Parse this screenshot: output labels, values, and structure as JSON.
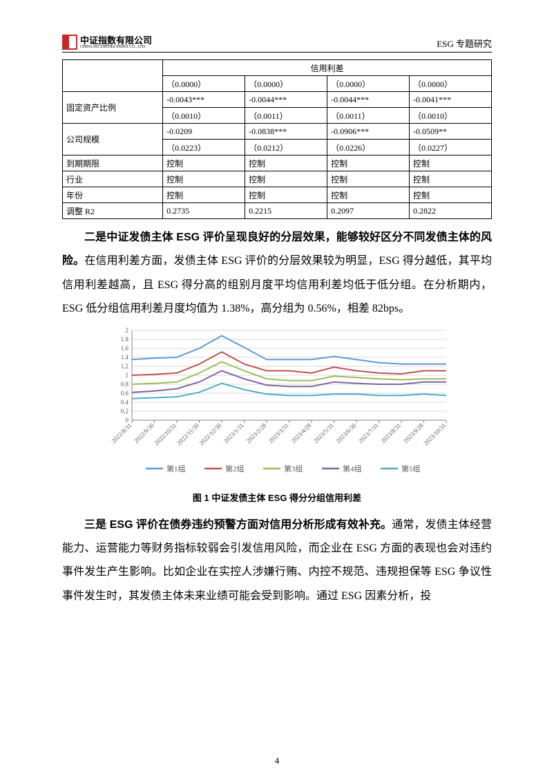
{
  "header": {
    "logo_cn": "中证指数有限公司",
    "logo_en": "CHINA SECURITIES INDEX CO., LTD.",
    "right": "ESG 专题研究"
  },
  "table": {
    "credit_spread_label": "信用利差",
    "row1": [
      "",
      "（0.0000）",
      "（0.0000）",
      "（0.0000）",
      "（0.0000）"
    ],
    "fixed_asset_label": "固定资产比例",
    "fixed_asset_a": [
      "-0.0043***",
      "-0.0044***",
      "-0.0044***",
      "-0.0041***"
    ],
    "fixed_asset_b": [
      "（0.0010）",
      "（0.0011）",
      "（0.0011）",
      "（0.0010）"
    ],
    "company_size_label": "公司规模",
    "company_size_a": [
      "-0.0209",
      "-0.0838***",
      "-0.0906***",
      "-0.0509**"
    ],
    "company_size_b": [
      "（0.0223）",
      "（0.0212）",
      "（0.0226）",
      "（0.0227）"
    ],
    "maturity": [
      "到期期限",
      "控制",
      "控制",
      "控制",
      "控制"
    ],
    "industry": [
      "行业",
      "控制",
      "控制",
      "控制",
      "控制"
    ],
    "year": [
      "年份",
      "控制",
      "控制",
      "控制",
      "控制"
    ],
    "adj_r2": [
      "调整 R2",
      "0.2735",
      "0.2215",
      "0.2097",
      "0.2822"
    ]
  },
  "para1": {
    "lead": "二是中证发债主体 ESG 评价呈现良好的分层效果，能够较好区分不同发债主体的风险。",
    "rest": "在信用利差方面，发债主体 ESG 评价的分层效果较为明显，ESG 得分越低，其平均信用利差越高，且 ESG 得分高的组别月度平均信用利差均低于低分组。在分析期内，ESG 低分组信用利差月度均值为 1.38%，高分组为 0.56%，相差 82bps。"
  },
  "chart": {
    "caption": "图 1  中证发债主体 ESG 得分分组信用利差",
    "y_ticks": [
      0,
      0.2,
      0.4,
      0.6,
      0.8,
      1,
      1.2,
      1.4,
      1.6,
      1.8,
      2
    ],
    "x_labels": [
      "2022/8/31",
      "2022/9/30",
      "2022/10/31",
      "2022/11/30",
      "2022/12/30",
      "2023/1/31",
      "2023/2/28",
      "2023/3/31",
      "2023/4/28",
      "2023/5/31",
      "2023/6/30",
      "2023/7/31",
      "2023/8/31",
      "2023/9/28",
      "2023/10/31"
    ],
    "series": [
      {
        "name": "第1组",
        "color": "#5b9bd5",
        "values": [
          1.35,
          1.38,
          1.4,
          1.6,
          1.88,
          1.62,
          1.35,
          1.35,
          1.35,
          1.42,
          1.35,
          1.28,
          1.25,
          1.25,
          1.25
        ]
      },
      {
        "name": "第2组",
        "color": "#c0504d",
        "values": [
          1.0,
          1.02,
          1.05,
          1.25,
          1.52,
          1.25,
          1.1,
          1.1,
          1.05,
          1.18,
          1.1,
          1.05,
          1.03,
          1.1,
          1.1
        ]
      },
      {
        "name": "第3组",
        "color": "#9bbb59",
        "values": [
          0.8,
          0.82,
          0.85,
          1.05,
          1.3,
          1.1,
          0.92,
          0.88,
          0.88,
          0.98,
          0.95,
          0.92,
          0.9,
          0.92,
          0.92
        ]
      },
      {
        "name": "第4组",
        "color": "#8064a2",
        "values": [
          0.62,
          0.65,
          0.7,
          0.85,
          1.1,
          0.92,
          0.78,
          0.75,
          0.75,
          0.85,
          0.82,
          0.8,
          0.8,
          0.85,
          0.85
        ]
      },
      {
        "name": "第5组",
        "color": "#4bacc6",
        "values": [
          0.48,
          0.5,
          0.52,
          0.62,
          0.82,
          0.68,
          0.58,
          0.55,
          0.55,
          0.58,
          0.58,
          0.55,
          0.55,
          0.58,
          0.55
        ]
      }
    ],
    "legend_labels": [
      "第1组",
      "第2组",
      "第3组",
      "第4组",
      "第5组"
    ],
    "ylim": [
      0,
      2
    ],
    "grid_color": "#d9d9d9",
    "axis_color": "#808080",
    "tick_font_size": 9
  },
  "para2": {
    "lead": "三是 ESG 评价在债券违约预警方面对信用分析形成有效补充。",
    "rest": "通常，发债主体经营能力、运营能力等财务指标较弱会引发信用风险，而企业在 ESG 方面的表现也会对违约事件发生产生影响。比如企业在实控人涉嫌行贿、内控不规范、违规担保等 ESG 争议性事件发生时，其发债主体未来业绩可能会受到影响。通过 ESG 因素分析，投"
  },
  "page_number": "4"
}
